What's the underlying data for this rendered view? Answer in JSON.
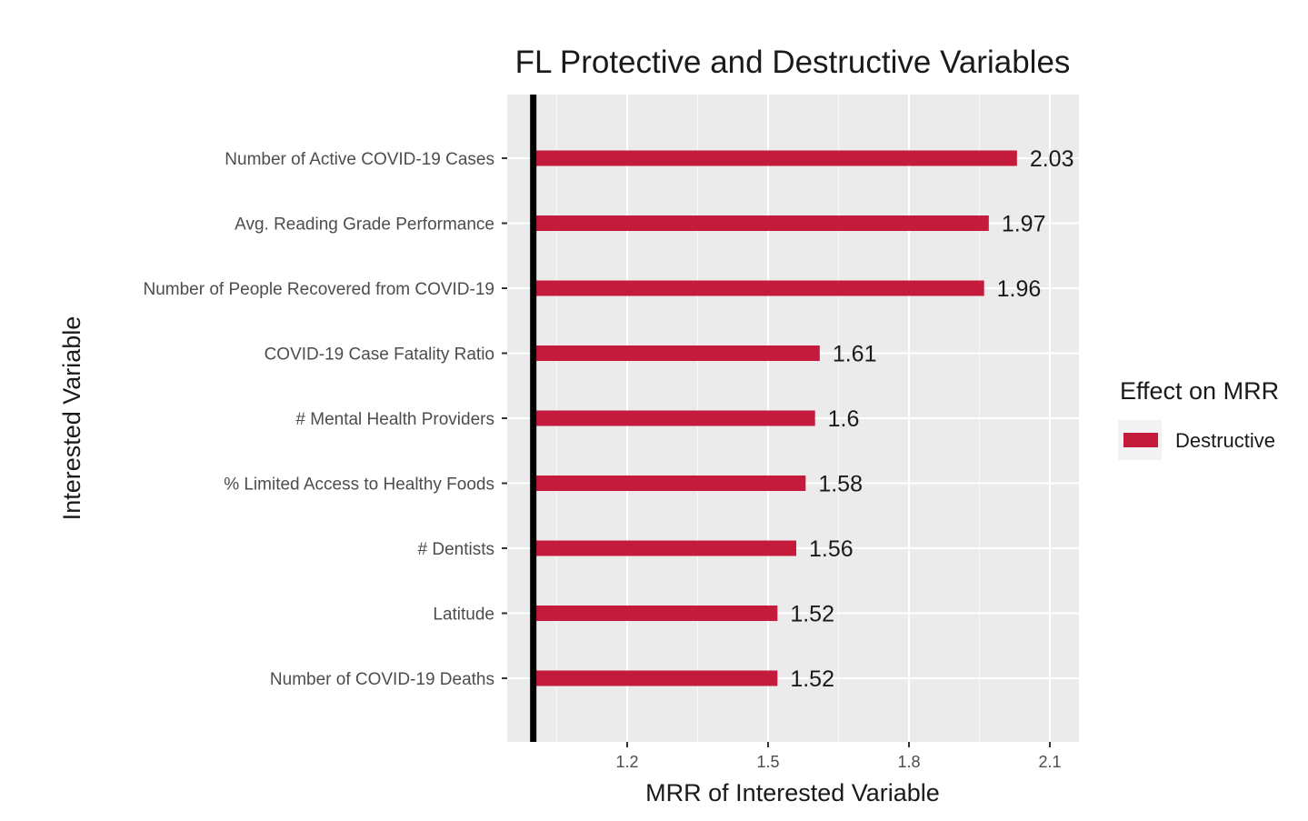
{
  "chart_data": {
    "type": "bar",
    "orientation": "horizontal",
    "title": "FL Protective and Destructive Variables",
    "xlabel": "MRR of Interested Variable",
    "ylabel": "Interested Variable",
    "xlim": [
      1.0,
      2.1
    ],
    "x_ticks": [
      "1.2",
      "1.5",
      "1.8",
      "2.1"
    ],
    "reference_line": 1.0,
    "grid": true,
    "legend_position": "right",
    "legend_title": "Effect on MRR",
    "categories": [
      "Number of Active COVID-19 Cases",
      "Avg. Reading Grade Performance",
      "Number of People Recovered from COVID-19",
      "COVID-19 Case Fatality Ratio",
      "# Mental Health Providers",
      "% Limited Access to Healthy Foods",
      "# Dentists",
      "Latitude",
      "Number of COVID-19 Deaths"
    ],
    "series": [
      {
        "name": "Destructive",
        "color": "#c41a3b",
        "values": [
          2.03,
          1.97,
          1.96,
          1.61,
          1.6,
          1.58,
          1.56,
          1.52,
          1.52
        ],
        "value_labels": [
          "2.03",
          "1.97",
          "1.96",
          "1.61",
          "1.6",
          "1.58",
          "1.56",
          "1.52",
          "1.52"
        ]
      }
    ],
    "panel_background": "#ebebeb",
    "grid_color": "#ffffff"
  }
}
